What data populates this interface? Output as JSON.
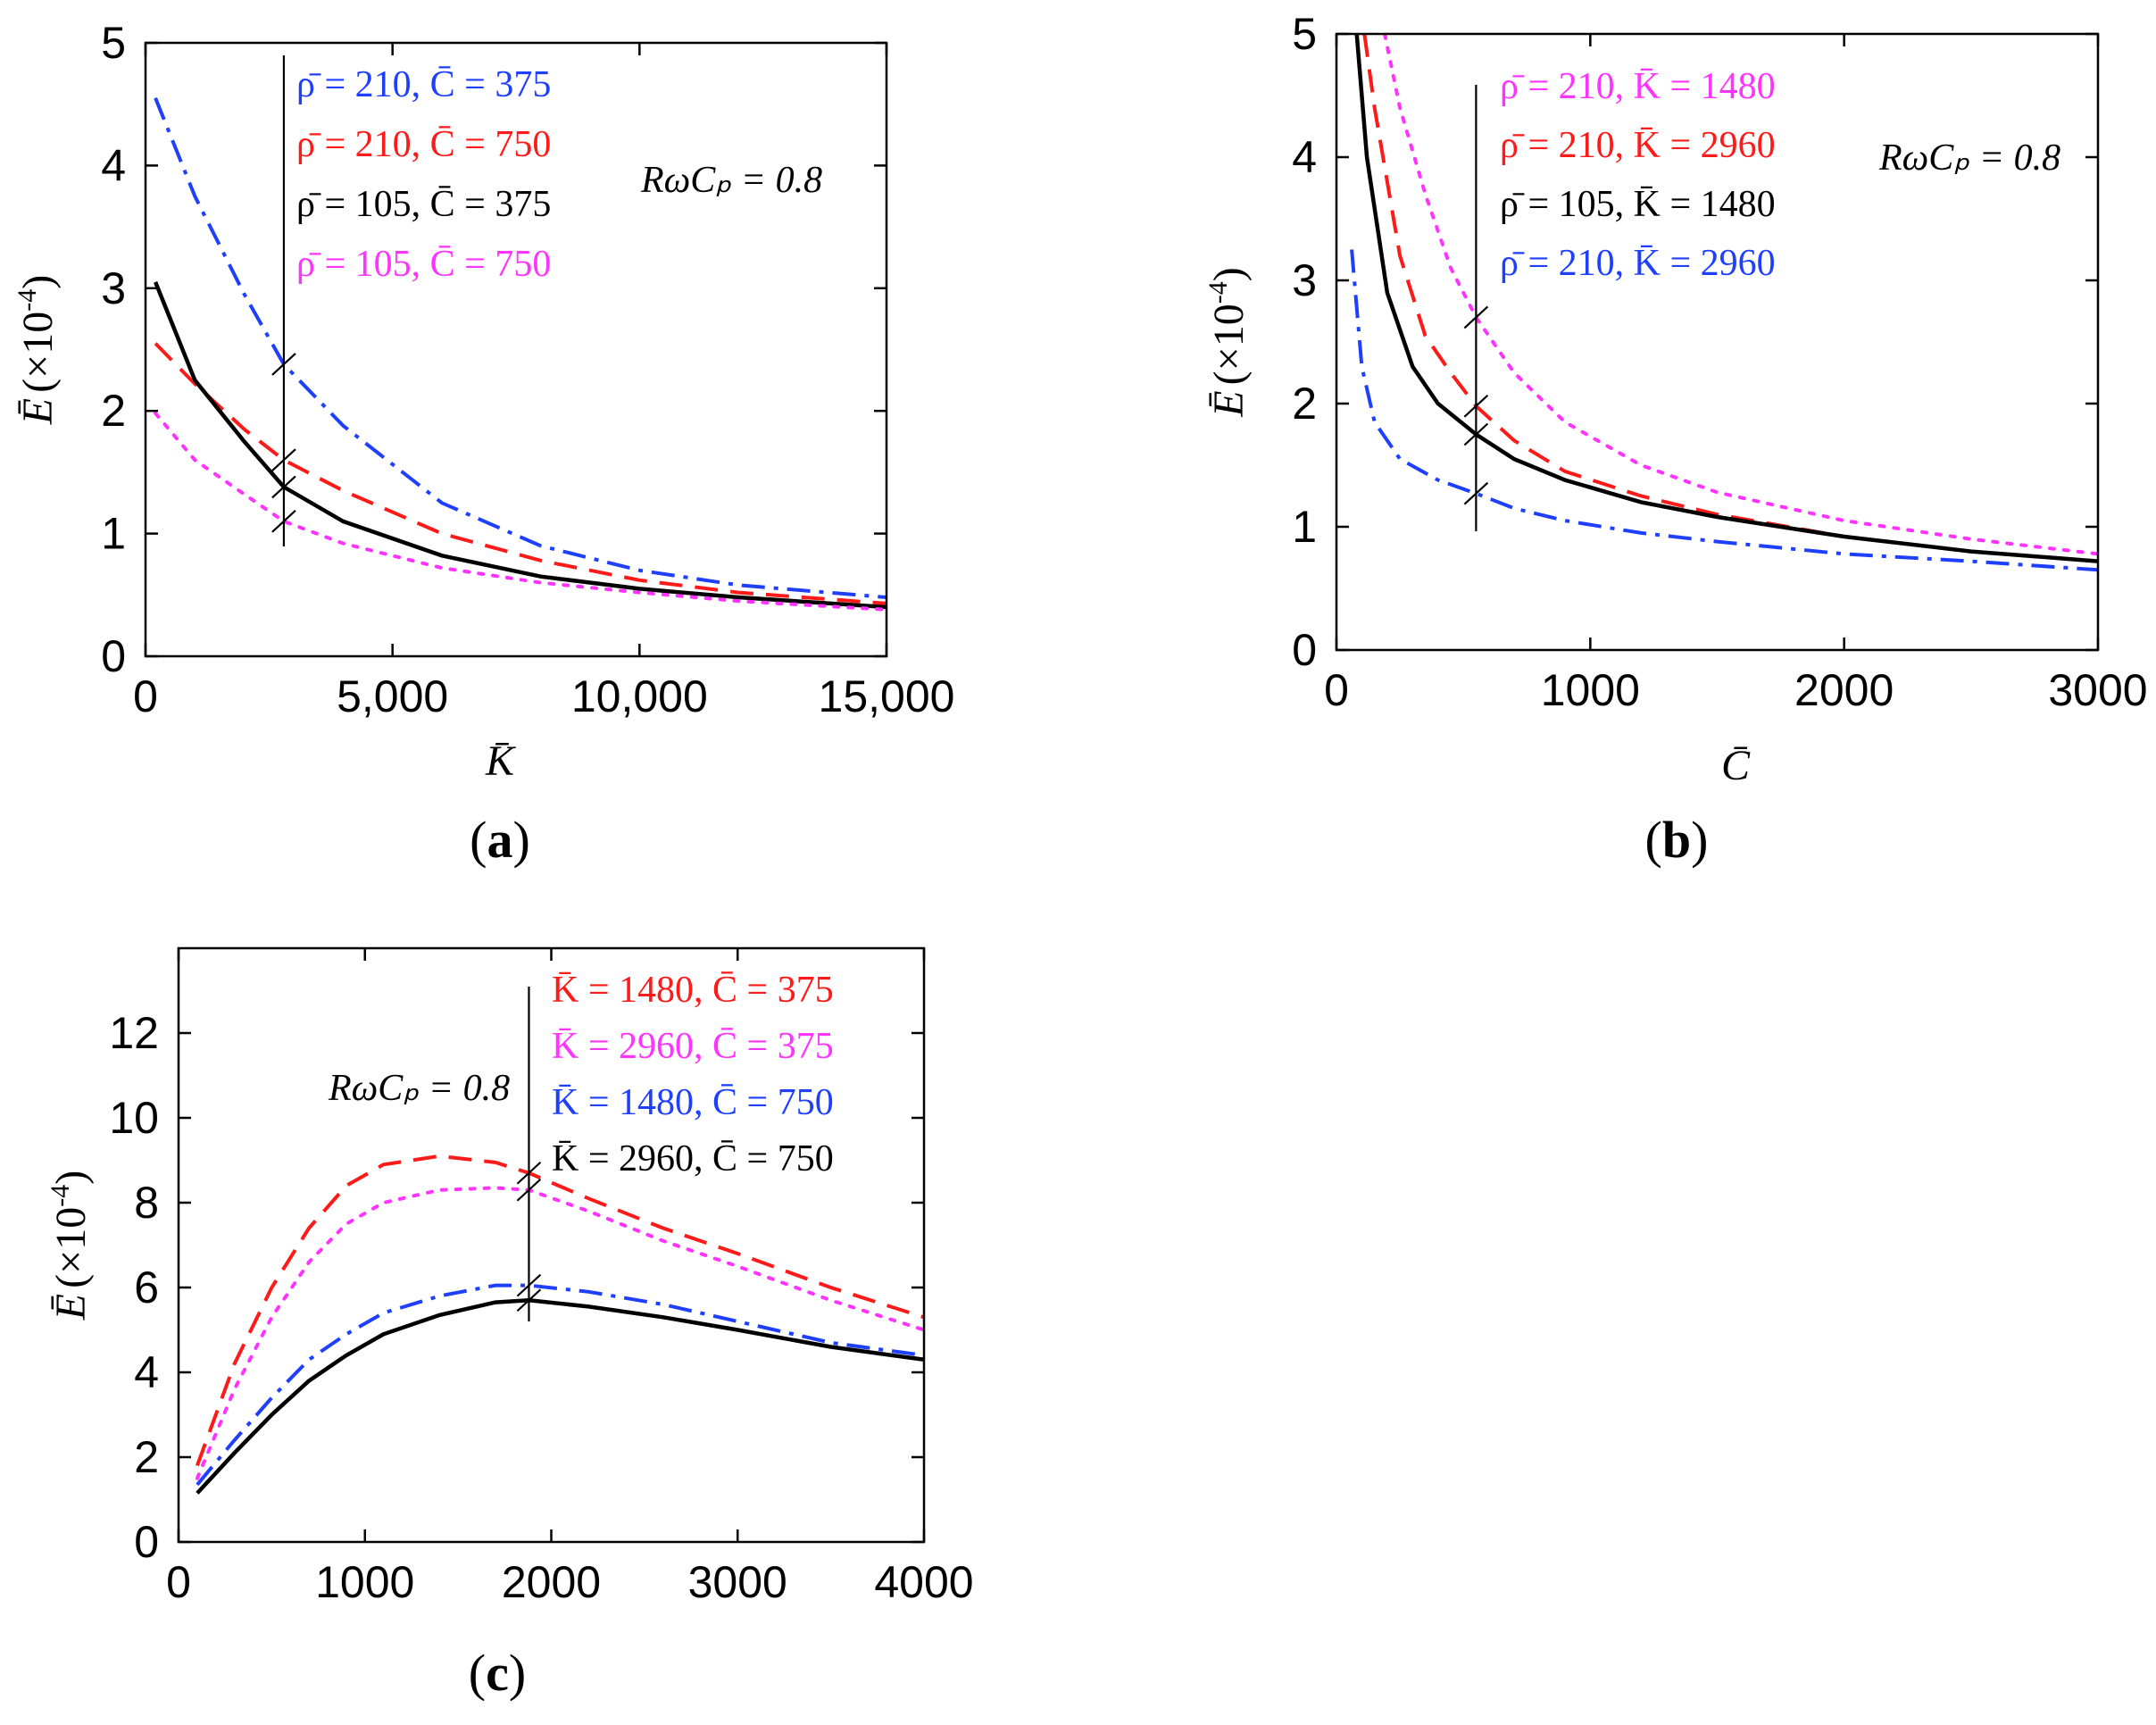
{
  "chart_data": [
    {
      "type": "line",
      "panel": "a",
      "panel_label": "(a)",
      "panel_label_parts": [
        "(",
        "a",
        ")"
      ],
      "xlabel": "K̄",
      "ylabel_symbol": "Ē",
      "ylabel_unit": "(×10",
      "ylabel_exp": "-4",
      "ylabel_close": ")",
      "xlim": [
        0,
        15000
      ],
      "ylim": [
        0,
        5
      ],
      "xticks": [
        0,
        5000,
        10000,
        15000
      ],
      "xtick_labels": [
        "0",
        "5,000",
        "10,000",
        "15,000"
      ],
      "yticks": [
        0,
        1,
        2,
        3,
        4,
        5
      ],
      "ytick_labels": [
        "0",
        "1",
        "2",
        "3",
        "4",
        "5"
      ],
      "annotation": "RωCₚ = 0.8",
      "marker_x": 2800,
      "series": [
        {
          "name": "ρ̄ = 210,  C̄ = 375",
          "color": "#1f3fff",
          "dash": "dashdot",
          "x": [
            200,
            1000,
            2000,
            2800,
            4000,
            6000,
            8000,
            10000,
            12000,
            15000
          ],
          "y": [
            4.55,
            3.75,
            2.95,
            2.38,
            1.88,
            1.25,
            0.9,
            0.7,
            0.58,
            0.48
          ]
        },
        {
          "name": "ρ̄ = 210,  C̄ = 750",
          "color": "#ff1a1a",
          "dash": "dashed",
          "x": [
            200,
            1000,
            2000,
            2800,
            4000,
            6000,
            8000,
            10000,
            12000,
            15000
          ],
          "y": [
            2.55,
            2.22,
            1.85,
            1.6,
            1.35,
            1.0,
            0.78,
            0.62,
            0.52,
            0.43
          ]
        },
        {
          "name": "ρ̄ = 105,  C̄ = 375",
          "color": "#000000",
          "dash": "solid",
          "x": [
            200,
            1000,
            2000,
            2800,
            4000,
            6000,
            8000,
            10000,
            12000,
            15000
          ],
          "y": [
            3.05,
            2.25,
            1.75,
            1.38,
            1.1,
            0.82,
            0.65,
            0.55,
            0.48,
            0.4
          ]
        },
        {
          "name": "ρ̄ = 105,  C̄ = 750",
          "color": "#ff33ff",
          "dash": "dotted",
          "x": [
            200,
            1000,
            2000,
            2800,
            4000,
            6000,
            8000,
            10000,
            12000,
            15000
          ],
          "y": [
            1.98,
            1.6,
            1.32,
            1.1,
            0.92,
            0.72,
            0.6,
            0.52,
            0.45,
            0.38
          ]
        }
      ]
    },
    {
      "type": "line",
      "panel": "b",
      "panel_label": "(b)",
      "panel_label_parts": [
        "(",
        "b",
        ")"
      ],
      "xlabel": "C̄",
      "ylabel_symbol": "Ē",
      "ylabel_unit": "(×10",
      "ylabel_exp": "-4",
      "ylabel_close": ")",
      "xlim": [
        0,
        3000
      ],
      "ylim": [
        0,
        5
      ],
      "xticks": [
        0,
        1000,
        2000,
        3000
      ],
      "xtick_labels": [
        "0",
        "1000",
        "2000",
        "3000"
      ],
      "yticks": [
        0,
        1,
        2,
        3,
        4,
        5
      ],
      "ytick_labels": [
        "0",
        "1",
        "2",
        "3",
        "4",
        "5"
      ],
      "annotation": "RωCₚ = 0.8",
      "marker_x": 550,
      "series": [
        {
          "name": "ρ̄ = 210,  K̄ = 1480",
          "color": "#ff33ff",
          "dash": "dotted",
          "x": [
            190,
            250,
            350,
            450,
            550,
            700,
            900,
            1200,
            1500,
            2000,
            2500,
            3000
          ],
          "y": [
            5.0,
            4.4,
            3.7,
            3.1,
            2.7,
            2.25,
            1.85,
            1.5,
            1.28,
            1.05,
            0.9,
            0.78
          ]
        },
        {
          "name": "ρ̄ = 210,  K̄ = 2960",
          "color": "#ff1a1a",
          "dash": "dashed",
          "x": [
            110,
            150,
            250,
            350,
            450,
            550,
            700,
            900,
            1200,
            1500,
            2000,
            2500,
            3000
          ],
          "y": [
            5.0,
            4.4,
            3.2,
            2.55,
            2.25,
            1.98,
            1.7,
            1.45,
            1.25,
            1.1,
            0.92,
            0.8,
            0.72
          ]
        },
        {
          "name": "ρ̄ = 105,  K̄ = 1480",
          "color": "#000000",
          "dash": "solid",
          "x": [
            80,
            120,
            200,
            300,
            400,
            550,
            700,
            900,
            1200,
            1500,
            2000,
            2500,
            3000
          ],
          "y": [
            5.0,
            4.0,
            2.9,
            2.3,
            2.0,
            1.75,
            1.55,
            1.38,
            1.2,
            1.08,
            0.92,
            0.8,
            0.72
          ]
        },
        {
          "name": "ρ̄ = 210,  K̄ = 2960",
          "color": "#1f3fff",
          "dash": "dashdot",
          "x": [
            60,
            100,
            150,
            250,
            400,
            550,
            700,
            900,
            1200,
            1500,
            2000,
            2500,
            3000
          ],
          "y": [
            3.25,
            2.3,
            1.85,
            1.55,
            1.38,
            1.27,
            1.15,
            1.05,
            0.95,
            0.88,
            0.78,
            0.72,
            0.65
          ]
        }
      ]
    },
    {
      "type": "line",
      "panel": "c",
      "panel_label": "(c)",
      "panel_label_parts": [
        "(",
        "c",
        ")"
      ],
      "xlabel": "",
      "ylabel_symbol": "Ē",
      "ylabel_unit": "(×10",
      "ylabel_exp": "-4",
      "ylabel_close": ")",
      "xlim": [
        0,
        4000
      ],
      "ylim": [
        0,
        14
      ],
      "xticks": [
        0,
        1000,
        2000,
        3000,
        4000
      ],
      "xtick_labels": [
        "0",
        "1000",
        "2000",
        "3000",
        "4000"
      ],
      "yticks": [
        0,
        2,
        4,
        6,
        8,
        10,
        12
      ],
      "ytick_labels": [
        "0",
        "2",
        "4",
        "6",
        "8",
        "10",
        "12"
      ],
      "annotation": "RωCₚ = 0.8",
      "marker_x": 1880,
      "series": [
        {
          "name": "K̄ = 1480,  C̄ = 375",
          "color": "#ff1a1a",
          "dash": "dashed",
          "x": [
            100,
            300,
            500,
            700,
            900,
            1100,
            1400,
            1700,
            1880,
            2200,
            2600,
            3000,
            3500,
            4000
          ],
          "y": [
            1.8,
            4.2,
            6.0,
            7.4,
            8.4,
            8.9,
            9.1,
            8.95,
            8.7,
            8.1,
            7.4,
            6.8,
            6.0,
            5.3
          ]
        },
        {
          "name": "K̄ = 2960,  C̄ = 375",
          "color": "#ff33ff",
          "dash": "dotted",
          "x": [
            100,
            300,
            500,
            700,
            900,
            1100,
            1400,
            1700,
            1880,
            2200,
            2600,
            3000,
            3500,
            4000
          ],
          "y": [
            1.5,
            3.6,
            5.3,
            6.6,
            7.5,
            8.0,
            8.3,
            8.35,
            8.3,
            7.8,
            7.1,
            6.5,
            5.7,
            5.0
          ]
        },
        {
          "name": "K̄ = 1480,  C̄ = 750",
          "color": "#1f3fff",
          "dash": "dashdot",
          "x": [
            100,
            300,
            500,
            700,
            900,
            1100,
            1400,
            1700,
            1880,
            2200,
            2600,
            3000,
            3500,
            4000
          ],
          "y": [
            1.35,
            2.4,
            3.4,
            4.3,
            4.9,
            5.4,
            5.8,
            6.05,
            6.05,
            5.9,
            5.6,
            5.2,
            4.7,
            4.4
          ]
        },
        {
          "name": "K̄ = 2960,  C̄ = 750",
          "color": "#000000",
          "dash": "solid",
          "x": [
            100,
            300,
            500,
            700,
            900,
            1100,
            1400,
            1700,
            1880,
            2200,
            2600,
            3000,
            3500,
            4000
          ],
          "y": [
            1.15,
            2.1,
            3.0,
            3.8,
            4.4,
            4.9,
            5.35,
            5.65,
            5.7,
            5.55,
            5.3,
            5.0,
            4.6,
            4.3
          ]
        }
      ]
    }
  ]
}
